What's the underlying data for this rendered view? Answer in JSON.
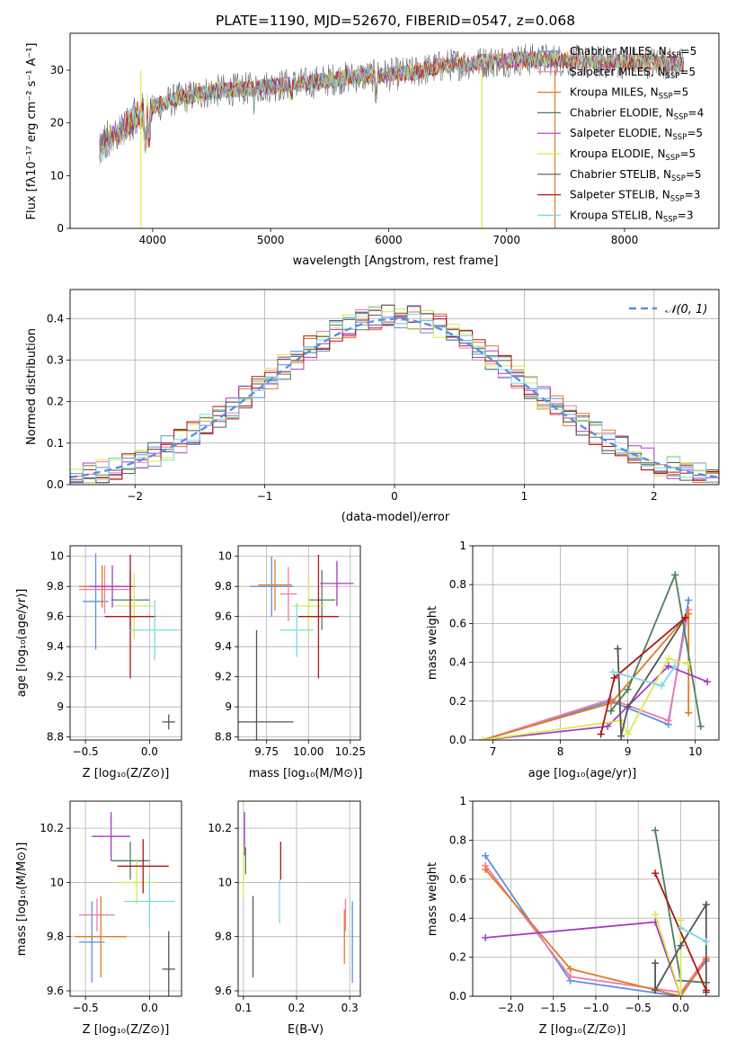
{
  "title": "PLATE=1190, MJD=52670, FIBERID=0547, z=0.068",
  "colors": {
    "chabrier_miles": "#5B8FE0",
    "salpeter_miles": "#F07AAE",
    "kroupa_miles": "#E07B1F",
    "chabrier_elodie": "#4E7D5B",
    "salpeter_elodie": "#A63CC4",
    "kroupa_elodie": "#D8EB4E",
    "chabrier_stelib": "#555555",
    "salpeter_stelib": "#B01414",
    "kroupa_stelib": "#7ED8E0",
    "normal_curve": "#5B8FE0",
    "grid": "#B0B0B0"
  },
  "chart_data": [
    {
      "id": "spectrum",
      "type": "line",
      "xlabel": "wavelength [Angstrom, rest frame]",
      "ylabel": "Flux [fλ10⁻¹⁷ erg cm⁻² s⁻¹ A⁻¹]",
      "xlim": [
        3300,
        8800
      ],
      "ylim": [
        0,
        37
      ],
      "xticks": [
        4000,
        5000,
        6000,
        7000,
        8000
      ],
      "yticks": [
        0,
        10,
        20,
        30
      ],
      "grid": false,
      "legend_position": "right",
      "continuum": [
        [
          3550,
          15
        ],
        [
          3700,
          18
        ],
        [
          3850,
          21
        ],
        [
          4000,
          23
        ],
        [
          4200,
          24.5
        ],
        [
          4500,
          26
        ],
        [
          4800,
          26.5
        ],
        [
          5000,
          27
        ],
        [
          5300,
          27.5
        ],
        [
          5600,
          28.5
        ],
        [
          5900,
          29
        ],
        [
          6200,
          29.5
        ],
        [
          6500,
          31
        ],
        [
          6800,
          31.5
        ],
        [
          7100,
          32
        ],
        [
          7400,
          32
        ],
        [
          7700,
          31.5
        ],
        [
          8000,
          31.5
        ],
        [
          8300,
          31.5
        ],
        [
          8500,
          31
        ]
      ],
      "series": [
        {
          "name": "Chabrier MILES, N_SSP=5",
          "legend_main": "Chabrier MILES, N",
          "legend_value": "=5",
          "color_key": "chabrier_miles"
        },
        {
          "name": "Salpeter MILES, N_SSP=5",
          "legend_main": "Salpeter MILES, N",
          "legend_value": "=5",
          "color_key": "salpeter_miles"
        },
        {
          "name": "Kroupa MILES, N_SSP=5",
          "legend_main": "Kroupa MILES, N",
          "legend_value": "=5",
          "color_key": "kroupa_miles"
        },
        {
          "name": "Chabrier ELODIE, N_SSP=4",
          "legend_main": "Chabrier ELODIE, N",
          "legend_value": "=4",
          "color_key": "chabrier_elodie"
        },
        {
          "name": "Salpeter ELODIE, N_SSP=5",
          "legend_main": "Salpeter ELODIE, N",
          "legend_value": "=5",
          "color_key": "salpeter_elodie"
        },
        {
          "name": "Kroupa ELODIE, N_SSP=5",
          "legend_main": "Kroupa ELODIE, N",
          "legend_value": "=5",
          "color_key": "kroupa_elodie"
        },
        {
          "name": "Chabrier STELIB, N_SSP=5",
          "legend_main": "Chabrier STELIB, N",
          "legend_value": "=5",
          "color_key": "chabrier_stelib"
        },
        {
          "name": "Salpeter STELIB, N_SSP=3",
          "legend_main": "Salpeter STELIB, N",
          "legend_value": "=3",
          "color_key": "salpeter_stelib"
        },
        {
          "name": "Kroupa STELIB, N_SSP=3",
          "legend_main": "Kroupa STELIB, N",
          "legend_value": "=3",
          "color_key": "kroupa_stelib"
        }
      ],
      "legend_subscript": "SSP",
      "drops": [
        {
          "x": 3900,
          "color_key": "kroupa_elodie"
        },
        {
          "x": 6790,
          "color_key": "kroupa_elodie"
        },
        {
          "x": 7410,
          "color_key": "kroupa_miles"
        }
      ]
    },
    {
      "id": "residuals",
      "type": "histogram",
      "xlabel": "(data-model)/error",
      "ylabel": "Normed distribution",
      "xlim": [
        -2.5,
        2.5
      ],
      "ylim": [
        0,
        0.47
      ],
      "xticks": [
        -2,
        -1,
        0,
        1,
        2
      ],
      "yticks": [
        0.0,
        0.1,
        0.2,
        0.3,
        0.4
      ],
      "grid": true,
      "legend_position": "top-right",
      "normal_legend": "𝒩(0, 1)",
      "bin_width": 0.1,
      "bins_start": -2.5,
      "bins_count": 50,
      "series_color_keys": [
        "chabrier_miles",
        "salpeter_miles",
        "kroupa_miles",
        "chabrier_elodie",
        "salpeter_elodie",
        "kroupa_elodie",
        "chabrier_stelib",
        "salpeter_stelib",
        "kroupa_stelib"
      ]
    },
    {
      "id": "age_vs_z",
      "type": "errorbar",
      "xlabel": "Z [log₁₀(Z/Z⊙)]",
      "ylabel": "age  [log₁₀(age/yr)]",
      "xlim": [
        -0.62,
        0.25
      ],
      "ylim": [
        8.78,
        10.07
      ],
      "xticks": [
        -0.5,
        0.0
      ],
      "xticklabels": [
        "−0.5",
        "0.0"
      ],
      "yticks": [
        8.8,
        9.0,
        9.2,
        9.4,
        9.6,
        9.8,
        10.0
      ],
      "grid": true,
      "points": [
        {
          "color_key": "chabrier_miles",
          "x": -0.42,
          "xerr": 0.1,
          "y": 9.7,
          "yerr": 0.32
        },
        {
          "color_key": "salpeter_miles",
          "x": -0.35,
          "xerr": 0.2,
          "y": 9.78,
          "yerr": 0.16
        },
        {
          "color_key": "kroupa_miles",
          "x": -0.37,
          "xerr": 0.18,
          "y": 9.8,
          "yerr": 0.14
        },
        {
          "color_key": "chabrier_elodie",
          "x": -0.15,
          "xerr": 0.15,
          "y": 9.71,
          "yerr": 0.2
        },
        {
          "color_key": "salpeter_elodie",
          "x": -0.29,
          "xerr": 0.18,
          "y": 9.8,
          "yerr": 0.14
        },
        {
          "color_key": "kroupa_elodie",
          "x": -0.12,
          "xerr": 0.15,
          "y": 9.67,
          "yerr": 0.22
        },
        {
          "color_key": "chabrier_stelib",
          "x": 0.15,
          "xerr": 0.05,
          "y": 8.9,
          "yerr": 0.05
        },
        {
          "color_key": "salpeter_stelib",
          "x": -0.15,
          "xerr": 0.2,
          "y": 9.6,
          "yerr": 0.41
        },
        {
          "color_key": "kroupa_stelib",
          "x": 0.04,
          "xerr": 0.2,
          "y": 9.51,
          "yerr": 0.2
        }
      ]
    },
    {
      "id": "age_vs_mass",
      "type": "errorbar",
      "xlabel": "mass [log₁₀(M/M⊙)]",
      "ylabel": "",
      "xlim": [
        9.58,
        10.31
      ],
      "ylim": [
        8.78,
        10.07
      ],
      "xticks": [
        9.75,
        10.0,
        10.25
      ],
      "xticklabels": [
        "9.75",
        "10.00",
        "10.25"
      ],
      "yticks": [
        8.8,
        9.0,
        9.2,
        9.4,
        9.6,
        9.8,
        10.0
      ],
      "grid": true,
      "points": [
        {
          "color_key": "chabrier_miles",
          "x": 9.78,
          "xerr": 0.13,
          "y": 9.8,
          "yerr": 0.2
        },
        {
          "color_key": "salpeter_miles",
          "x": 9.88,
          "xerr": 0.05,
          "y": 9.75,
          "yerr": 0.18
        },
        {
          "color_key": "kroupa_miles",
          "x": 9.8,
          "xerr": 0.1,
          "y": 9.81,
          "yerr": 0.17
        },
        {
          "color_key": "chabrier_elodie",
          "x": 10.08,
          "xerr": 0.08,
          "y": 9.71,
          "yerr": 0.2
        },
        {
          "color_key": "salpeter_elodie",
          "x": 10.17,
          "xerr": 0.1,
          "y": 9.82,
          "yerr": 0.15
        },
        {
          "color_key": "kroupa_elodie",
          "x": 10.0,
          "xerr": 0.1,
          "y": 9.67,
          "yerr": 0.2
        },
        {
          "color_key": "chabrier_stelib",
          "x": 9.69,
          "xerr": 0.22,
          "y": 8.9,
          "yerr": 0.61
        },
        {
          "color_key": "salpeter_stelib",
          "x": 10.06,
          "xerr": 0.12,
          "y": 9.6,
          "yerr": 0.41
        },
        {
          "color_key": "kroupa_stelib",
          "x": 9.93,
          "xerr": 0.1,
          "y": 9.51,
          "yerr": 0.18
        }
      ]
    },
    {
      "id": "weight_vs_age",
      "type": "line",
      "xlabel": "age  [log₁₀(age/yr)]",
      "ylabel": "mass weight",
      "xlim": [
        6.7,
        10.35
      ],
      "ylim": [
        0,
        1
      ],
      "xticks": [
        7,
        8,
        9,
        10
      ],
      "yticks": [
        0.0,
        0.2,
        0.4,
        0.6,
        0.8,
        1.0
      ],
      "grid": true,
      "series": [
        {
          "color_key": "chabrier_miles",
          "points": [
            [
              6.85,
              0.0
            ],
            [
              8.75,
              0.2
            ],
            [
              9.6,
              0.08
            ],
            [
              9.9,
              0.72
            ]
          ]
        },
        {
          "color_key": "salpeter_miles",
          "points": [
            [
              6.85,
              0.0
            ],
            [
              8.75,
              0.21
            ],
            [
              9.6,
              0.1
            ],
            [
              9.9,
              0.67
            ]
          ]
        },
        {
          "color_key": "kroupa_miles",
          "points": [
            [
              6.85,
              0.0
            ],
            [
              8.75,
              0.19
            ],
            [
              9.9,
              0.65
            ],
            [
              9.9,
              0.14
            ]
          ]
        },
        {
          "color_key": "chabrier_elodie",
          "points": [
            [
              8.75,
              0.15
            ],
            [
              9.0,
              0.26
            ],
            [
              9.7,
              0.85
            ],
            [
              10.08,
              0.07
            ]
          ]
        },
        {
          "color_key": "salpeter_elodie",
          "points": [
            [
              6.85,
              0.0
            ],
            [
              8.7,
              0.07
            ],
            [
              9.6,
              0.38
            ],
            [
              10.18,
              0.3
            ]
          ]
        },
        {
          "color_key": "kroupa_elodie",
          "points": [
            [
              6.85,
              0.0
            ],
            [
              8.9,
              0.1
            ],
            [
              9.0,
              0.03
            ],
            [
              9.6,
              0.42
            ],
            [
              9.9,
              0.39
            ]
          ]
        },
        {
          "color_key": "chabrier_stelib",
          "points": [
            [
              8.85,
              0.47
            ],
            [
              8.9,
              0.02
            ],
            [
              9.0,
              0.17
            ],
            [
              9.85,
              0.63
            ]
          ]
        },
        {
          "color_key": "salpeter_stelib",
          "points": [
            [
              8.6,
              0.03
            ],
            [
              8.8,
              0.32
            ],
            [
              9.85,
              0.63
            ]
          ]
        },
        {
          "color_key": "kroupa_stelib",
          "points": [
            [
              8.78,
              0.35
            ],
            [
              9.5,
              0.28
            ],
            [
              9.7,
              0.38
            ]
          ]
        }
      ]
    },
    {
      "id": "mass_vs_z",
      "type": "errorbar",
      "xlabel": "Z [log₁₀(Z/Z⊙)]",
      "ylabel": "mass [log₁₀(M/M⊙)]",
      "xlim": [
        -0.62,
        0.25
      ],
      "ylim": [
        9.58,
        10.3
      ],
      "xticks": [
        -0.5,
        0.0
      ],
      "xticklabels": [
        "−0.5",
        "0.0"
      ],
      "yticks": [
        9.6,
        9.8,
        10.0,
        10.2
      ],
      "grid": true,
      "points": [
        {
          "color_key": "chabrier_miles",
          "x": -0.45,
          "xerr": 0.1,
          "y": 9.78,
          "yerr": 0.15
        },
        {
          "color_key": "salpeter_miles",
          "x": -0.41,
          "xerr": 0.14,
          "y": 9.88,
          "yerr": 0.06
        },
        {
          "color_key": "kroupa_miles",
          "x": -0.38,
          "xerr": 0.2,
          "y": 9.8,
          "yerr": 0.15
        },
        {
          "color_key": "chabrier_elodie",
          "x": -0.15,
          "xerr": 0.15,
          "y": 10.08,
          "yerr": 0.07
        },
        {
          "color_key": "salpeter_elodie",
          "x": -0.3,
          "xerr": 0.15,
          "y": 10.17,
          "yerr": 0.09
        },
        {
          "color_key": "kroupa_elodie",
          "x": -0.1,
          "xerr": 0.15,
          "y": 10.0,
          "yerr": 0.08
        },
        {
          "color_key": "chabrier_stelib",
          "x": 0.15,
          "xerr": 0.05,
          "y": 9.68,
          "yerr": 0.14
        },
        {
          "color_key": "salpeter_stelib",
          "x": -0.05,
          "xerr": 0.2,
          "y": 10.06,
          "yerr": 0.1
        },
        {
          "color_key": "kroupa_stelib",
          "x": 0.0,
          "xerr": 0.2,
          "y": 9.93,
          "yerr": 0.1
        }
      ]
    },
    {
      "id": "mass_vs_ebv",
      "type": "errorbar",
      "xlabel": "E(B-V)",
      "ylabel": "",
      "xlim": [
        0.09,
        0.32
      ],
      "ylim": [
        9.58,
        10.3
      ],
      "xticks": [
        0.1,
        0.2,
        0.3
      ],
      "xticklabels": [
        "0.1",
        "0.2",
        "0.3"
      ],
      "yticks": [
        9.6,
        9.8,
        10.0,
        10.2
      ],
      "grid": true,
      "points": [
        {
          "color_key": "chabrier_miles",
          "x": 0.305,
          "xerr": 0,
          "y": 9.78,
          "yerr": 0.15
        },
        {
          "color_key": "salpeter_miles",
          "x": 0.292,
          "xerr": 0,
          "y": 9.88,
          "yerr": 0.06
        },
        {
          "color_key": "kroupa_miles",
          "x": 0.29,
          "xerr": 0,
          "y": 9.8,
          "yerr": 0.1
        },
        {
          "color_key": "chabrier_elodie",
          "x": 0.104,
          "xerr": 0,
          "y": 10.08,
          "yerr": 0.05
        },
        {
          "color_key": "salpeter_elodie",
          "x": 0.102,
          "xerr": 0,
          "y": 10.18,
          "yerr": 0.08
        },
        {
          "color_key": "kroupa_elodie",
          "x": 0.1,
          "xerr": 0,
          "y": 10.04,
          "yerr": 0.1
        },
        {
          "color_key": "chabrier_stelib",
          "x": 0.118,
          "xerr": 0,
          "y": 9.8,
          "yerr": 0.15
        },
        {
          "color_key": "salpeter_stelib",
          "x": 0.17,
          "xerr": 0,
          "y": 10.08,
          "yerr": 0.07
        },
        {
          "color_key": "kroupa_stelib",
          "x": 0.168,
          "xerr": 0,
          "y": 9.93,
          "yerr": 0.08
        }
      ]
    },
    {
      "id": "weight_vs_z",
      "type": "line",
      "xlabel": "Z [log₁₀(Z/Z⊙)]",
      "ylabel": "mass weight",
      "xlim": [
        -2.45,
        0.45
      ],
      "ylim": [
        0,
        1
      ],
      "xticks": [
        -2.0,
        -1.5,
        -1.0,
        -0.5,
        0.0
      ],
      "xticklabels": [
        "−2.0",
        "−1.5",
        "−1.0",
        "−0.5",
        "0.0"
      ],
      "yticks": [
        0.0,
        0.2,
        0.4,
        0.6,
        0.8,
        1.0
      ],
      "grid": true,
      "series": [
        {
          "color_key": "chabrier_miles",
          "points": [
            [
              -2.3,
              0.72
            ],
            [
              -1.3,
              0.08
            ],
            [
              -0.02,
              0.0
            ],
            [
              0.3,
              0.18
            ]
          ]
        },
        {
          "color_key": "salpeter_miles",
          "points": [
            [
              -2.3,
              0.67
            ],
            [
              -1.3,
              0.1
            ],
            [
              0.0,
              0.02
            ],
            [
              0.3,
              0.2
            ]
          ]
        },
        {
          "color_key": "kroupa_miles",
          "points": [
            [
              -2.3,
              0.65
            ],
            [
              -1.3,
              0.14
            ],
            [
              0.0,
              0.0
            ],
            [
              0.3,
              0.19
            ]
          ]
        },
        {
          "color_key": "chabrier_elodie",
          "points": [
            [
              -0.3,
              0.85
            ],
            [
              0.0,
              0.08
            ],
            [
              0.3,
              0.07
            ]
          ]
        },
        {
          "color_key": "salpeter_elodie",
          "points": [
            [
              -2.3,
              0.3
            ],
            [
              -0.3,
              0.38
            ],
            [
              0.0,
              0.0
            ]
          ]
        },
        {
          "color_key": "kroupa_elodie",
          "points": [
            [
              -0.3,
              0.42
            ],
            [
              0.0,
              0.0
            ],
            [
              0.0,
              0.39
            ]
          ]
        },
        {
          "color_key": "chabrier_stelib",
          "points": [
            [
              -0.3,
              0.17
            ],
            [
              -0.3,
              0.03
            ],
            [
              0.0,
              0.26
            ],
            [
              0.3,
              0.47
            ],
            [
              0.3,
              0.02
            ]
          ]
        },
        {
          "color_key": "salpeter_stelib",
          "points": [
            [
              -0.3,
              0.63
            ],
            [
              0.3,
              0.03
            ]
          ]
        },
        {
          "color_key": "kroupa_stelib",
          "points": [
            [
              0.0,
              0.35
            ],
            [
              0.3,
              0.28
            ]
          ]
        }
      ]
    }
  ]
}
